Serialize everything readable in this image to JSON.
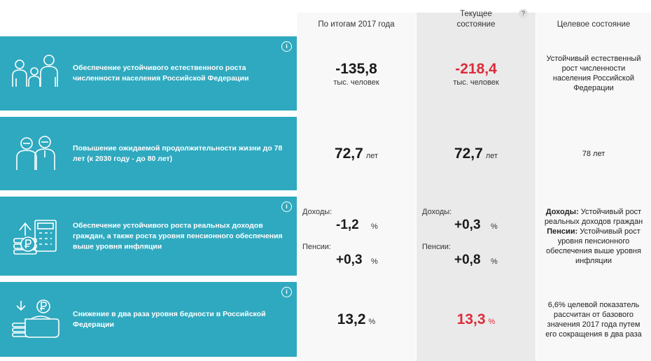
{
  "header": {
    "col1": "По итогам 2017 года",
    "col2_line1": "Текущее",
    "col2_line2": "состояние",
    "col2_help": "?",
    "col3": "Целевое состояние"
  },
  "rows": [
    {
      "label": "Обеспечение устойчивого естественного роста численности населения Российской Федерации",
      "icon": "family-icon",
      "info": "i",
      "col1_value": "-135,8",
      "col1_unit": "тыс. человек",
      "col2_value": "-218,4",
      "col2_unit": "тыс. человек",
      "target": "Устойчивый естественный рост численности населения Российской Федерации"
    },
    {
      "label": "Повышение ожидаемой продолжительности жизни до 78 лет (к 2030 году - до 80 лет)",
      "icon": "elderly-couple-icon",
      "col1_value": "72,7",
      "col1_unit": "лет",
      "col2_value": "72,7",
      "col2_unit": "лет",
      "target": "78 лет"
    },
    {
      "label": "Обеспечение устойчивого роста реальных доходов граждан, а также роста уровня пенсионного обеспечения выше уровня инфляции",
      "icon": "ruble-calculator-icon",
      "info": "i",
      "income_label": "Доходы:",
      "pension_label": "Пенсии:",
      "col1_income": "-1,2",
      "col1_pension": "+0,3",
      "col2_income": "+0,3",
      "col2_pension": "+0,8",
      "pct": "%",
      "target_income_bold": "Доходы:",
      "target_income_text": " Устойчивый рост реальных доходов граждан",
      "target_pension_bold": "Пенсии:",
      "target_pension_text": " Устойчивый рост уровня пенсионного обеспечения выше уровня инфляции"
    },
    {
      "label": "Снижение в два раза уровня бедности в Российской Федерации",
      "icon": "wallet-ruble-icon",
      "info": "i",
      "col1_value": "13,2",
      "col1_unit": "%",
      "col2_value": "13,3",
      "col2_unit": "%",
      "target": "6,6% целевой показатель рассчитан от базового значения 2017 года путем его сокращения в два раза"
    }
  ],
  "colors": {
    "teal": "#2fa9bf",
    "red": "#dc2c3a",
    "light_gray": "#f8f8f8",
    "mid_gray": "#eaeaea"
  }
}
